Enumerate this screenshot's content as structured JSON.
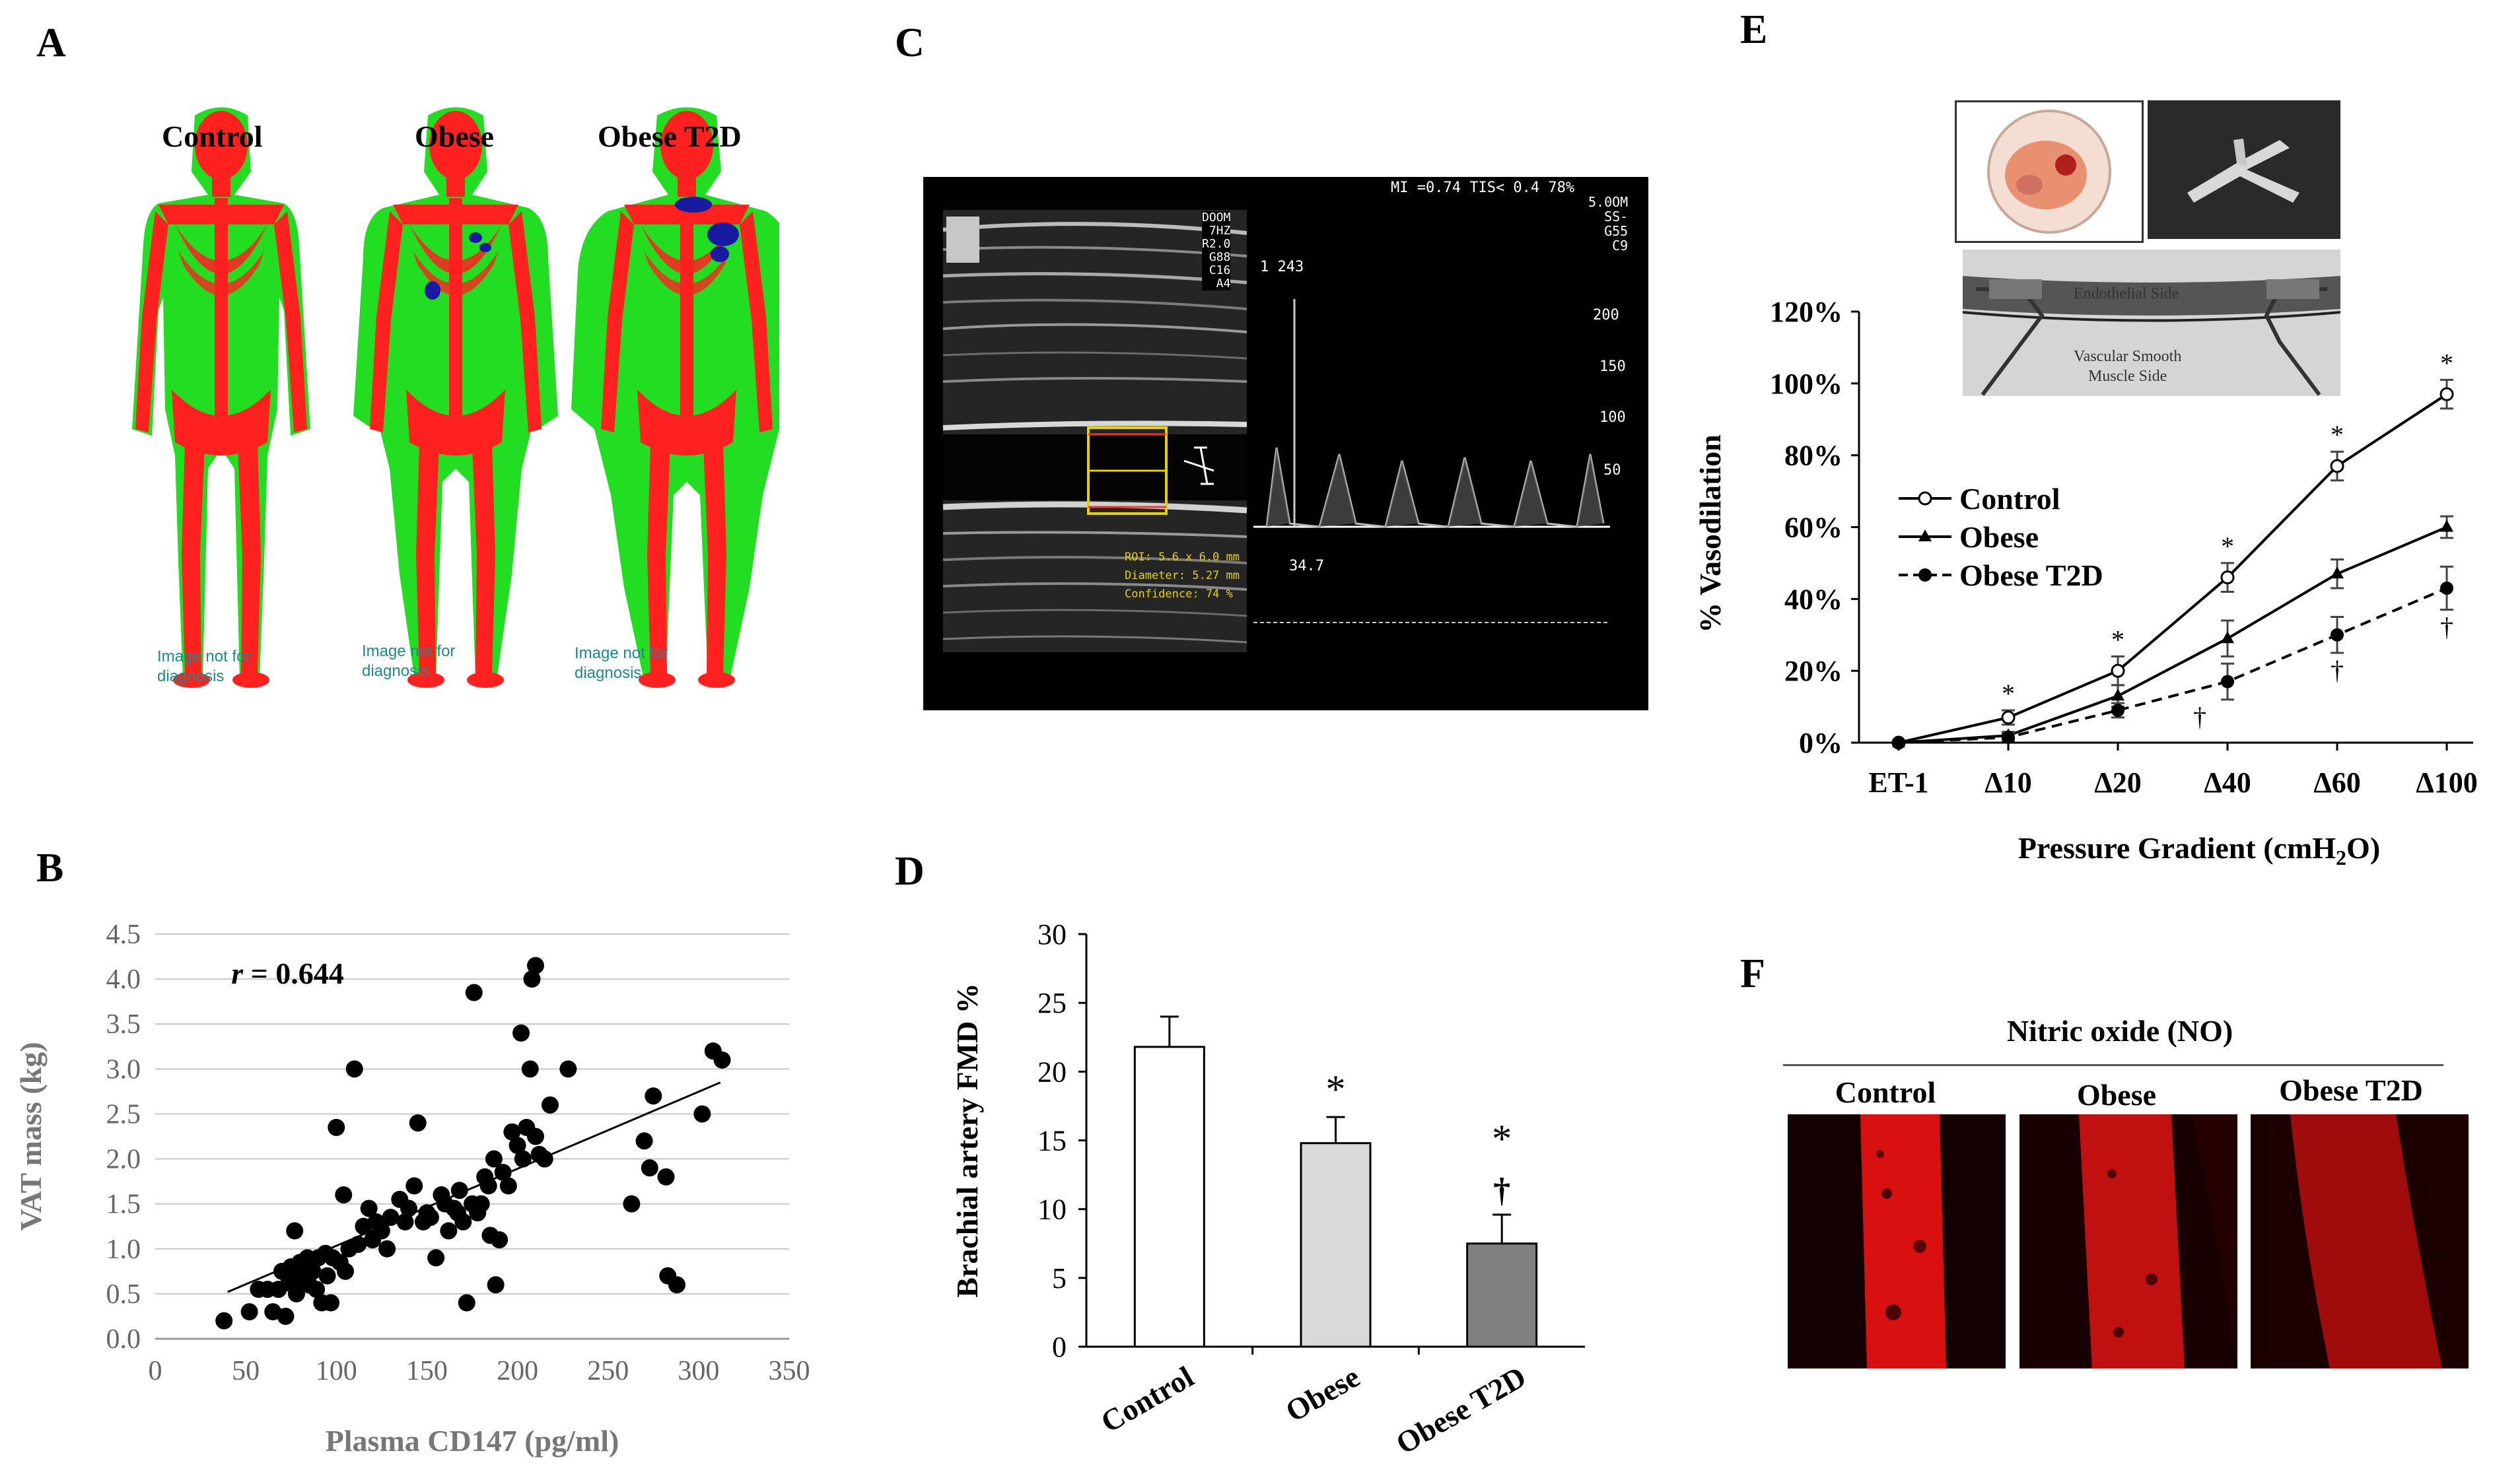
{
  "panels": {
    "a": "A",
    "b": "B",
    "c": "C",
    "d": "D",
    "e": "E",
    "f": "F"
  },
  "panel_a": {
    "labels": [
      "Control",
      "Obese",
      "Obese T2D"
    ],
    "watermark_line1": [
      "Image not for",
      "Image not for",
      "Image not for"
    ],
    "watermark_line2": [
      "diagnosis",
      "diagnosis",
      "diagnosis"
    ],
    "colors": {
      "bone": "#ff2020",
      "tissue": "#22dd22",
      "vat": "#1a1aa0"
    }
  },
  "panel_c": {
    "top_readout": "MI =0.74 TIS< 0.4  78%",
    "right_settings": [
      "5.0OM",
      "SS-",
      "G55",
      "C9"
    ],
    "left_settings": [
      "DOOM",
      "7HZ",
      "R2.0",
      "G88",
      "C16",
      "A4"
    ],
    "velocity_marker": "1 243",
    "scale": [
      "200",
      "150",
      "100",
      "50"
    ],
    "baseline_value": "34.7",
    "roi_lines": [
      "ROI: 5.6 x 6.0 mm",
      "Diameter: 5.27 mm",
      "Confidence: 74 %"
    ]
  },
  "panel_e": {
    "photo_labels": [
      "Endothelial Side",
      "Vascular Smooth",
      "Muscle Side"
    ]
  },
  "panel_f": {
    "title": "Nitric oxide (NO)",
    "labels": [
      "Control",
      "Obese",
      "Obese T2D"
    ],
    "color": "#e01010"
  },
  "chart_data": [
    {
      "id": "B",
      "type": "scatter",
      "title": "",
      "annotation_r": "r",
      "annotation_value": "= 0.644",
      "xlabel": "Plasma CD147 (pg/ml)",
      "ylabel": "VAT mass (kg)",
      "xlim": [
        0,
        350
      ],
      "ylim": [
        0,
        4.5
      ],
      "xticks": [
        "0",
        "50",
        "100",
        "150",
        "200",
        "250",
        "300",
        "350"
      ],
      "yticks": [
        "0.0",
        "0.5",
        "1.0",
        "1.5",
        "2.0",
        "2.5",
        "3.0",
        "3.5",
        "4.0",
        "4.5"
      ],
      "grid": true,
      "trendline": {
        "x0": 40,
        "y0": 0.52,
        "x1": 312,
        "y1": 2.85
      },
      "points": [
        [
          38,
          0.2
        ],
        [
          52,
          0.3
        ],
        [
          57,
          0.55
        ],
        [
          62,
          0.55
        ],
        [
          65,
          0.3
        ],
        [
          68,
          0.55
        ],
        [
          70,
          0.75
        ],
        [
          72,
          0.25
        ],
        [
          74,
          0.65
        ],
        [
          75,
          0.8
        ],
        [
          76,
          0.6
        ],
        [
          77,
          1.2
        ],
        [
          78,
          0.5
        ],
        [
          80,
          0.85
        ],
        [
          82,
          0.7
        ],
        [
          84,
          0.9
        ],
        [
          85,
          0.6
        ],
        [
          87,
          0.75
        ],
        [
          89,
          0.55
        ],
        [
          90,
          0.9
        ],
        [
          92,
          0.4
        ],
        [
          94,
          0.95
        ],
        [
          95,
          0.7
        ],
        [
          97,
          0.4
        ],
        [
          98,
          0.9
        ],
        [
          100,
          2.35
        ],
        [
          102,
          0.85
        ],
        [
          104,
          1.6
        ],
        [
          105,
          0.75
        ],
        [
          107,
          1.0
        ],
        [
          110,
          3.0
        ],
        [
          112,
          1.05
        ],
        [
          115,
          1.25
        ],
        [
          118,
          1.45
        ],
        [
          120,
          1.1
        ],
        [
          122,
          1.3
        ],
        [
          125,
          1.2
        ],
        [
          128,
          1.0
        ],
        [
          130,
          1.35
        ],
        [
          135,
          1.55
        ],
        [
          138,
          1.3
        ],
        [
          140,
          1.45
        ],
        [
          143,
          1.7
        ],
        [
          145,
          2.4
        ],
        [
          148,
          1.3
        ],
        [
          150,
          1.4
        ],
        [
          152,
          1.35
        ],
        [
          155,
          0.9
        ],
        [
          158,
          1.6
        ],
        [
          160,
          1.5
        ],
        [
          162,
          1.2
        ],
        [
          165,
          1.45
        ],
        [
          167,
          1.4
        ],
        [
          168,
          1.65
        ],
        [
          170,
          1.3
        ],
        [
          172,
          0.4
        ],
        [
          175,
          1.5
        ],
        [
          176,
          3.85
        ],
        [
          178,
          1.4
        ],
        [
          180,
          1.5
        ],
        [
          182,
          1.8
        ],
        [
          184,
          1.7
        ],
        [
          185,
          1.15
        ],
        [
          187,
          2.0
        ],
        [
          188,
          0.6
        ],
        [
          190,
          1.1
        ],
        [
          192,
          1.85
        ],
        [
          195,
          1.7
        ],
        [
          197,
          2.3
        ],
        [
          200,
          2.15
        ],
        [
          202,
          3.4
        ],
        [
          203,
          2.0
        ],
        [
          205,
          2.35
        ],
        [
          207,
          3.0
        ],
        [
          208,
          4.0
        ],
        [
          210,
          4.15
        ],
        [
          210,
          2.25
        ],
        [
          212,
          2.05
        ],
        [
          215,
          2.0
        ],
        [
          218,
          2.6
        ],
        [
          228,
          3.0
        ],
        [
          263,
          1.5
        ],
        [
          270,
          2.2
        ],
        [
          273,
          1.9
        ],
        [
          275,
          2.7
        ],
        [
          282,
          1.8
        ],
        [
          283,
          0.7
        ],
        [
          288,
          0.6
        ],
        [
          302,
          2.5
        ],
        [
          308,
          3.2
        ],
        [
          313,
          3.1
        ]
      ],
      "point_color": "#000000"
    },
    {
      "id": "D",
      "type": "bar",
      "categories": [
        "Control",
        "Obese",
        "Obese T2D"
      ],
      "values": [
        21.8,
        14.8,
        7.5
      ],
      "errors": [
        2.2,
        1.9,
        2.1
      ],
      "bar_colors": [
        "#ffffff",
        "#d9d9d9",
        "#808080"
      ],
      "markers": [
        "",
        "*",
        "*"
      ],
      "markers2": [
        "",
        "",
        "†"
      ],
      "ylabel": "Brachial artery FMD %",
      "ylim": [
        0,
        30
      ],
      "yticks": [
        "0",
        "5",
        "10",
        "15",
        "20",
        "25",
        "30"
      ]
    },
    {
      "id": "E",
      "type": "line",
      "categories": [
        "ET-1",
        "Δ10",
        "Δ20",
        "Δ40",
        "Δ60",
        "Δ100"
      ],
      "xlabel": "Pressure Gradient (cmH",
      "xlabel_sub": "2",
      "xlabel_end": "O)",
      "ylabel": "% Vasodilation",
      "ylim": [
        0,
        120
      ],
      "yticks": [
        "0%",
        "20%",
        "40%",
        "60%",
        "80%",
        "100%",
        "120%"
      ],
      "series": [
        {
          "name": "Control",
          "values": [
            0,
            7,
            20,
            46,
            77,
            97
          ],
          "errors": [
            0,
            2,
            4,
            4,
            4,
            4
          ],
          "marker": "open-circle",
          "dash": "none"
        },
        {
          "name": "Obese",
          "values": [
            0,
            2,
            13,
            29,
            47,
            60
          ],
          "errors": [
            0,
            1,
            3,
            5,
            4,
            3
          ],
          "marker": "triangle",
          "dash": "none"
        },
        {
          "name": "Obese T2D",
          "values": [
            0,
            1.5,
            9,
            17,
            30,
            43
          ],
          "errors": [
            0,
            1,
            2,
            5,
            5,
            6
          ],
          "marker": "filled-circle",
          "dash": "dashed"
        }
      ],
      "star_markers": [
        "",
        "*",
        "*",
        "*",
        "*",
        "*"
      ],
      "dagger_markers": [
        "",
        "",
        "",
        "†",
        "†",
        "†"
      ]
    }
  ]
}
